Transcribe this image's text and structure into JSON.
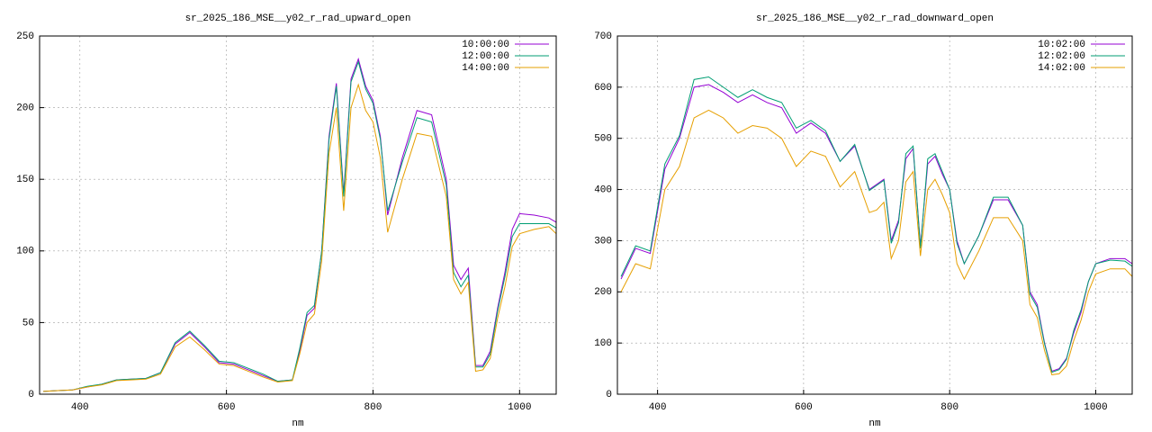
{
  "chart_data": [
    {
      "type": "line",
      "title": "sr_2025_186_MSE__y02_r_rad_upward_open",
      "xlabel": "nm",
      "x": [
        350,
        370,
        390,
        410,
        430,
        450,
        470,
        490,
        510,
        530,
        550,
        570,
        590,
        610,
        630,
        650,
        670,
        690,
        700,
        710,
        720,
        730,
        740,
        750,
        760,
        770,
        780,
        790,
        800,
        810,
        820,
        840,
        860,
        880,
        900,
        910,
        920,
        930,
        940,
        950,
        960,
        970,
        980,
        990,
        1000,
        1020,
        1040,
        1050
      ],
      "series": [
        {
          "name": "10:00:00",
          "color": "#9400d3",
          "values": [
            2,
            2.5,
            3,
            5,
            7,
            10,
            10.5,
            11,
            15,
            35,
            43,
            33,
            22,
            21,
            17,
            13,
            9,
            10,
            30,
            55,
            60,
            100,
            180,
            217,
            140,
            220,
            234,
            215,
            205,
            180,
            125,
            165,
            198,
            195,
            150,
            90,
            80,
            88,
            20,
            20,
            30,
            60,
            85,
            115,
            126,
            125,
            123,
            120
          ]
        },
        {
          "name": "12:00:00",
          "color": "#009e73",
          "values": [
            2,
            2.5,
            3,
            5.5,
            7,
            10,
            10.5,
            11,
            15,
            36,
            44,
            34,
            23,
            22,
            18,
            14,
            9,
            10,
            32,
            57,
            62,
            100,
            178,
            215,
            138,
            218,
            232,
            213,
            203,
            178,
            128,
            162,
            193,
            190,
            146,
            85,
            75,
            83,
            19,
            19,
            28,
            58,
            82,
            110,
            119,
            119,
            119,
            116
          ]
        },
        {
          "name": "14:00:00",
          "color": "#e69f00",
          "values": [
            2,
            2.5,
            3,
            5,
            6.5,
            9.5,
            10,
            10.5,
            14,
            33,
            40,
            31,
            21,
            20,
            16,
            12,
            8.5,
            9.5,
            28,
            50,
            56,
            93,
            168,
            200,
            128,
            200,
            216,
            198,
            190,
            165,
            113,
            150,
            182,
            180,
            138,
            80,
            70,
            78,
            16,
            17,
            25,
            53,
            75,
            103,
            112,
            115,
            117,
            112
          ]
        }
      ],
      "xlim": [
        345,
        1050
      ],
      "xticks": [
        400,
        600,
        800,
        1000
      ],
      "ylim": [
        0,
        250
      ],
      "yticks": [
        0,
        50,
        100,
        150,
        200,
        250
      ],
      "grid": true,
      "legend": "top-right"
    },
    {
      "type": "line",
      "title": "sr_2025_186_MSE__y02_r_rad_downward_open",
      "xlabel": "nm",
      "x": [
        350,
        370,
        390,
        410,
        430,
        450,
        470,
        490,
        510,
        530,
        550,
        570,
        590,
        610,
        630,
        650,
        670,
        690,
        700,
        710,
        720,
        730,
        740,
        750,
        760,
        770,
        780,
        790,
        800,
        810,
        820,
        840,
        860,
        880,
        900,
        910,
        920,
        930,
        940,
        950,
        960,
        970,
        980,
        990,
        1000,
        1020,
        1040,
        1050
      ],
      "series": [
        {
          "name": "10:02:00",
          "color": "#9400d3",
          "values": [
            225,
            285,
            275,
            440,
            500,
            600,
            605,
            590,
            570,
            585,
            570,
            560,
            510,
            530,
            510,
            455,
            485,
            400,
            410,
            420,
            300,
            340,
            460,
            480,
            290,
            450,
            465,
            430,
            400,
            300,
            255,
            310,
            380,
            380,
            330,
            200,
            175,
            100,
            45,
            50,
            70,
            120,
            160,
            220,
            255,
            265,
            265,
            255
          ]
        },
        {
          "name": "12:02:00",
          "color": "#009e73",
          "values": [
            230,
            290,
            280,
            450,
            505,
            615,
            620,
            600,
            580,
            595,
            580,
            570,
            520,
            535,
            515,
            455,
            488,
            398,
            408,
            418,
            295,
            335,
            470,
            485,
            285,
            460,
            470,
            435,
            400,
            295,
            255,
            310,
            385,
            385,
            330,
            195,
            170,
            98,
            43,
            48,
            68,
            125,
            165,
            220,
            255,
            262,
            260,
            250
          ]
        },
        {
          "name": "14:02:00",
          "color": "#e69f00",
          "values": [
            200,
            255,
            245,
            400,
            445,
            540,
            555,
            540,
            510,
            525,
            520,
            500,
            445,
            475,
            465,
            405,
            435,
            355,
            360,
            375,
            265,
            300,
            415,
            435,
            270,
            400,
            420,
            390,
            355,
            255,
            225,
            280,
            345,
            345,
            300,
            175,
            150,
            85,
            38,
            40,
            55,
            105,
            145,
            200,
            235,
            245,
            245,
            230
          ]
        }
      ],
      "xlim": [
        345,
        1050
      ],
      "xticks": [
        400,
        600,
        800,
        1000
      ],
      "ylim": [
        0,
        700
      ],
      "yticks": [
        0,
        100,
        200,
        300,
        400,
        500,
        600,
        700
      ],
      "grid": true,
      "legend": "top-right"
    }
  ]
}
